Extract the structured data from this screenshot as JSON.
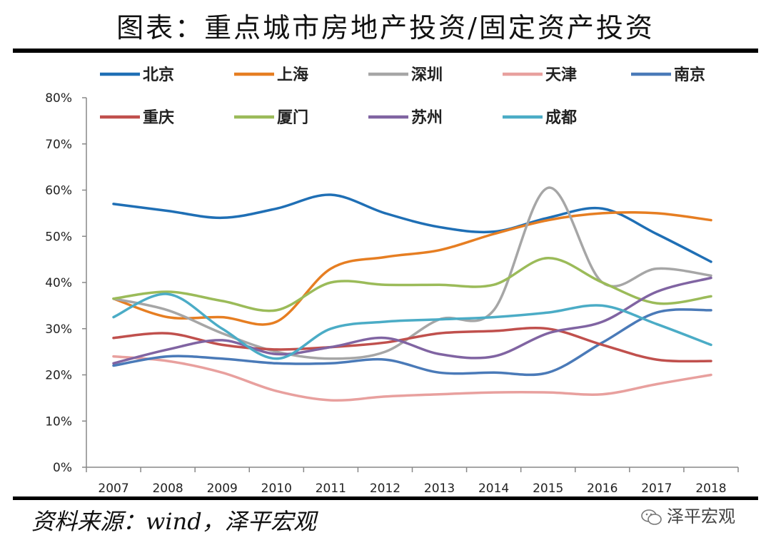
{
  "title": "图表：重点城市房地产投资/固定资产投资",
  "source": "资料来源：wind，泽平宏观",
  "watermark": "泽平宏观",
  "watermark_icon": "wechat-icon",
  "chart_data": {
    "type": "line",
    "title": "图表：重点城市房地产投资/固定资产投资",
    "xlabel": "",
    "ylabel": "",
    "x": [
      "2007",
      "2008",
      "2009",
      "2010",
      "2011",
      "2012",
      "2013",
      "2014",
      "2015",
      "2016",
      "2017",
      "2018"
    ],
    "ylim": [
      0,
      80
    ],
    "yticks": [
      0,
      10,
      20,
      30,
      40,
      50,
      60,
      70,
      80
    ],
    "ytick_labels": [
      "0%",
      "10%",
      "20%",
      "30%",
      "40%",
      "50%",
      "60%",
      "70%",
      "80%"
    ],
    "legend_position": "top",
    "series": [
      {
        "name": "北京",
        "color": "#1f6fb5",
        "values": [
          57,
          55.5,
          54,
          56,
          59,
          55,
          52,
          51,
          54,
          56,
          50.5,
          44.5
        ]
      },
      {
        "name": "上海",
        "color": "#e67e22",
        "values": [
          36.5,
          32.5,
          32.5,
          31.5,
          43,
          45.5,
          47,
          50.5,
          53.5,
          55,
          55,
          53.5
        ]
      },
      {
        "name": "深圳",
        "color": "#a6a6a6",
        "values": [
          36.5,
          34,
          29,
          25,
          23.5,
          25,
          32,
          34,
          60.5,
          40,
          43,
          41.5
        ]
      },
      {
        "name": "天津",
        "color": "#e8a09e",
        "values": [
          24,
          23,
          20.5,
          16.5,
          14.5,
          15.3,
          15.8,
          16.2,
          16.2,
          15.8,
          18,
          20
        ]
      },
      {
        "name": "南京",
        "color": "#4a7ab8",
        "values": [
          22,
          24,
          23.5,
          22.5,
          22.5,
          23.3,
          20.5,
          20.5,
          20.5,
          27,
          33.5,
          34
        ]
      },
      {
        "name": "重庆",
        "color": "#c0504d",
        "values": [
          28,
          29,
          26.5,
          25.5,
          26,
          27,
          29,
          29.5,
          30,
          26.5,
          23.3,
          23
        ]
      },
      {
        "name": "厦门",
        "color": "#9bbb59",
        "values": [
          36.5,
          38,
          36,
          34,
          40,
          39.5,
          39.5,
          39.5,
          45.3,
          40,
          35.5,
          37
        ]
      },
      {
        "name": "苏州",
        "color": "#8064a2",
        "values": [
          22.5,
          25.5,
          27.5,
          24.5,
          26,
          28,
          24.5,
          24,
          29,
          31.5,
          38,
          41
        ]
      },
      {
        "name": "成都",
        "color": "#4bacc6",
        "values": [
          32.5,
          37.5,
          30,
          23.5,
          30,
          31.5,
          32,
          32.5,
          33.5,
          35,
          31,
          26.5
        ]
      }
    ]
  }
}
